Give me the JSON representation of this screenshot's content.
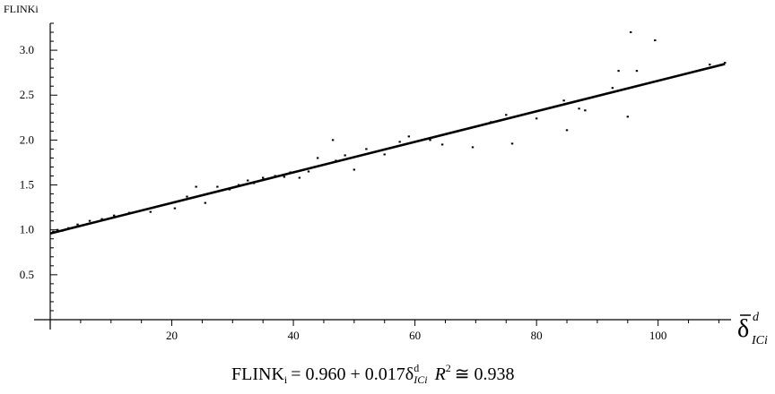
{
  "chart_data": {
    "type": "scatter",
    "ylabel": "FLINKi",
    "xlabel": {
      "symbol": "δ",
      "superscript": "d",
      "subscript": "ICi"
    },
    "xlim": [
      0,
      112
    ],
    "ylim": [
      0,
      3.3
    ],
    "x_ticks": [
      "20",
      "40",
      "60",
      "80",
      "100"
    ],
    "x_tick_values": [
      20,
      40,
      60,
      80,
      100
    ],
    "y_ticks": [
      "0.5",
      "1.0",
      "1.5",
      "2.0",
      "2.5",
      "3.0"
    ],
    "y_tick_values": [
      0.5,
      1.0,
      1.5,
      2.0,
      2.5,
      3.0
    ],
    "grid": false,
    "fit_line": {
      "intercept": 0.96,
      "slope": 0.017,
      "x_range": [
        0,
        111
      ]
    },
    "points": [
      [
        0.5,
        0.98
      ],
      [
        1.2,
        1.0
      ],
      [
        2.0,
        0.99
      ],
      [
        3.0,
        1.02
      ],
      [
        4.5,
        1.06
      ],
      [
        6.5,
        1.1
      ],
      [
        8.5,
        1.12
      ],
      [
        10.5,
        1.16
      ],
      [
        13.0,
        1.19
      ],
      [
        16.5,
        1.2
      ],
      [
        20.5,
        1.24
      ],
      [
        22.5,
        1.37
      ],
      [
        24.0,
        1.48
      ],
      [
        25.5,
        1.3
      ],
      [
        27.5,
        1.48
      ],
      [
        29.5,
        1.45
      ],
      [
        31.0,
        1.5
      ],
      [
        32.5,
        1.55
      ],
      [
        33.5,
        1.52
      ],
      [
        35.0,
        1.58
      ],
      [
        37.0,
        1.6
      ],
      [
        38.5,
        1.59
      ],
      [
        39.5,
        1.64
      ],
      [
        41.0,
        1.58
      ],
      [
        42.5,
        1.65
      ],
      [
        44.0,
        1.8
      ],
      [
        46.5,
        2.0
      ],
      [
        47.0,
        1.77
      ],
      [
        48.5,
        1.83
      ],
      [
        50.0,
        1.67
      ],
      [
        52.0,
        1.9
      ],
      [
        55.0,
        1.84
      ],
      [
        57.5,
        1.98
      ],
      [
        59.0,
        2.04
      ],
      [
        62.5,
        2.0
      ],
      [
        64.5,
        1.95
      ],
      [
        69.5,
        1.92
      ],
      [
        72.5,
        2.2
      ],
      [
        75.0,
        2.28
      ],
      [
        76.0,
        1.96
      ],
      [
        80.0,
        2.24
      ],
      [
        84.5,
        2.44
      ],
      [
        85.0,
        2.11
      ],
      [
        87.0,
        2.35
      ],
      [
        88.0,
        2.33
      ],
      [
        92.5,
        2.58
      ],
      [
        93.5,
        2.77
      ],
      [
        95.0,
        2.26
      ],
      [
        95.5,
        3.2
      ],
      [
        96.5,
        2.77
      ],
      [
        99.5,
        3.11
      ],
      [
        108.5,
        2.84
      ],
      [
        111.0,
        2.86
      ]
    ],
    "equation": {
      "lhs": "FLINK",
      "lhs_sub": "i",
      "rhs_prefix": "= 0.960 + 0.017δ",
      "rhs_sup": "d",
      "rhs_sub": "ICi",
      "r_label": "R",
      "r_exp": "2",
      "r_value": "≅ 0.938"
    },
    "colors": {
      "axis": "#000000",
      "fit": "#000000",
      "points": "#000000"
    }
  }
}
